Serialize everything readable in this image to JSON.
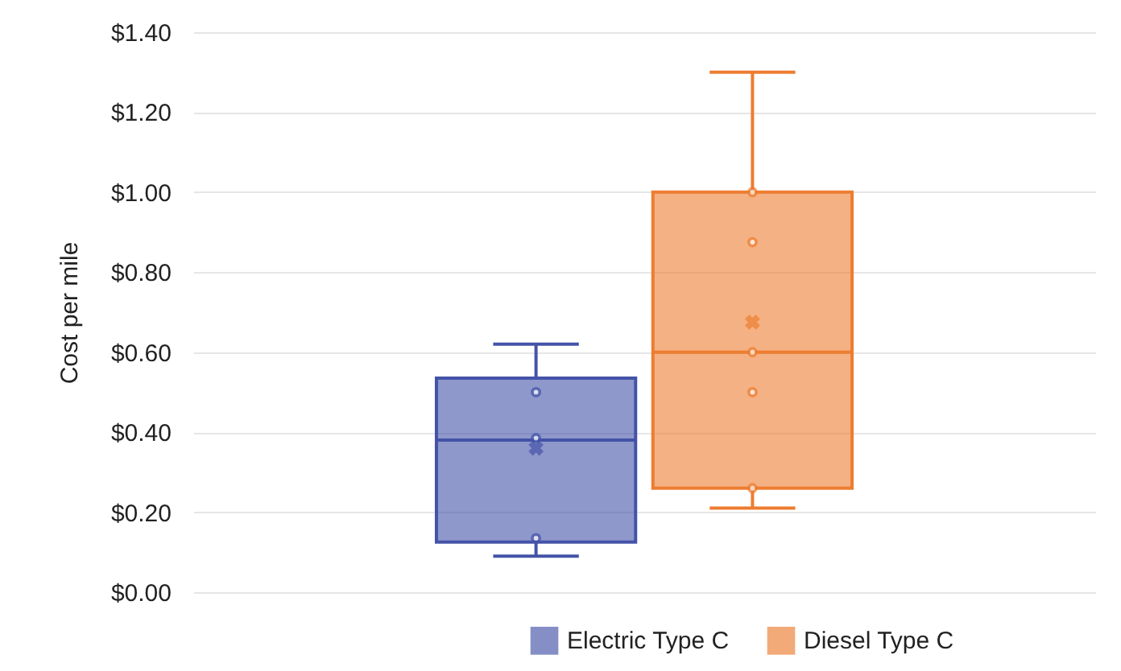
{
  "chart_data": {
    "type": "box",
    "ylabel": "Cost per mile",
    "categories": [
      null
    ],
    "series": [
      {
        "name": "Electric Type C",
        "color": "#4453a8",
        "boxes": [
          {
            "low": 0.09,
            "q1": 0.125,
            "median": 0.38,
            "q3": 0.535,
            "high": 0.62,
            "mean": 0.36
          }
        ]
      },
      {
        "name": "Diesel Type C",
        "color": "#ed7d31",
        "boxes": [
          {
            "low": 0.21,
            "q1": 0.26,
            "median": 0.6,
            "q3": 1.0,
            "high": 1.3,
            "mean": 0.675
          }
        ]
      },
      {
        "type": "scatter",
        "color": "#4453a8",
        "x": [
          null,
          null,
          null
        ],
        "values": [
          0.5,
          0.385,
          0.135
        ]
      },
      {
        "type": "scatter",
        "color": "#ed7d31",
        "x": [
          null,
          null,
          null,
          null,
          null
        ],
        "values": [
          1.0,
          0.875,
          0.6,
          0.5,
          0.26
        ]
      }
    ],
    "ylim": [
      0,
      1.4
    ],
    "yticks": [
      {
        "value": 0,
        "label": "$0.00"
      },
      {
        "value": 0.2,
        "label": "$0.20"
      },
      {
        "value": 0.4,
        "label": "$0.40"
      },
      {
        "value": 0.6,
        "label": "$0.60"
      },
      {
        "value": 0.8,
        "label": "$0.80"
      },
      {
        "value": 1.0,
        "label": "$1.00"
      },
      {
        "value": 1.2,
        "label": "$1.20"
      },
      {
        "value": 1.4,
        "label": "$1.40"
      }
    ],
    "grid": "y",
    "legend": "bottom right",
    "marker": "circle"
  }
}
